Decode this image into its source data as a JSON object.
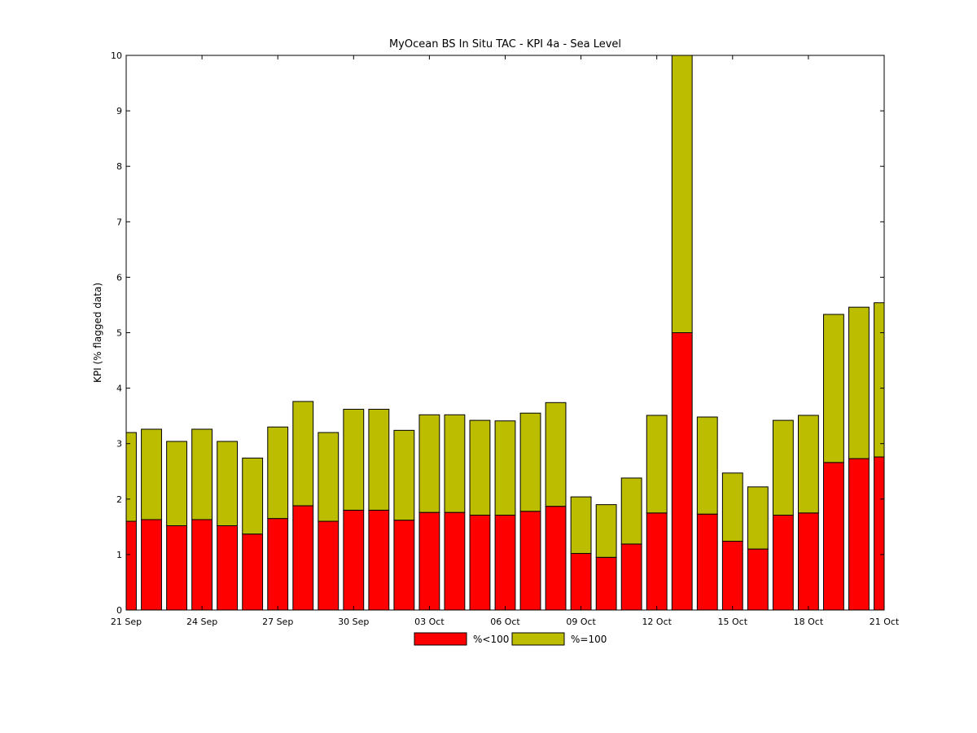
{
  "chart_data": {
    "type": "bar",
    "stacked": true,
    "title": "MyOcean  BS In Situ TAC - KPI 4a - Sea Level",
    "xlabel": "",
    "ylabel": "KPI (% flagged data)",
    "ylim": [
      0,
      10
    ],
    "yticks": [
      "0",
      "1",
      "2",
      "3",
      "4",
      "5",
      "6",
      "7",
      "8",
      "9",
      "10"
    ],
    "xticks": [
      "21 Sep",
      "24 Sep",
      "27 Sep",
      "30 Sep",
      "03 Oct",
      "06 Oct",
      "09 Oct",
      "12 Oct",
      "15 Oct",
      "18 Oct",
      "21 Oct"
    ],
    "grid": false,
    "legend_position": "bottom-center",
    "series": [
      {
        "name": "%<100",
        "color": "#ff0000",
        "values": [
          1.6,
          1.63,
          1.52,
          1.63,
          1.52,
          1.37,
          1.65,
          1.88,
          1.6,
          1.8,
          1.8,
          1.62,
          1.76,
          1.76,
          1.71,
          1.71,
          1.78,
          1.87,
          1.02,
          0.95,
          1.19,
          1.75,
          5.0,
          1.73,
          1.24,
          1.1,
          1.71,
          1.75,
          2.66,
          2.73,
          2.76
        ]
      },
      {
        "name": "%=100",
        "color": "#bdbd00",
        "values": [
          1.6,
          1.63,
          1.52,
          1.63,
          1.52,
          1.37,
          1.65,
          1.88,
          1.6,
          1.82,
          1.82,
          1.62,
          1.76,
          1.76,
          1.71,
          1.7,
          1.77,
          1.87,
          1.02,
          0.95,
          1.19,
          1.76,
          5.0,
          1.75,
          1.23,
          1.12,
          1.71,
          1.76,
          2.67,
          2.73,
          2.78
        ]
      }
    ]
  }
}
